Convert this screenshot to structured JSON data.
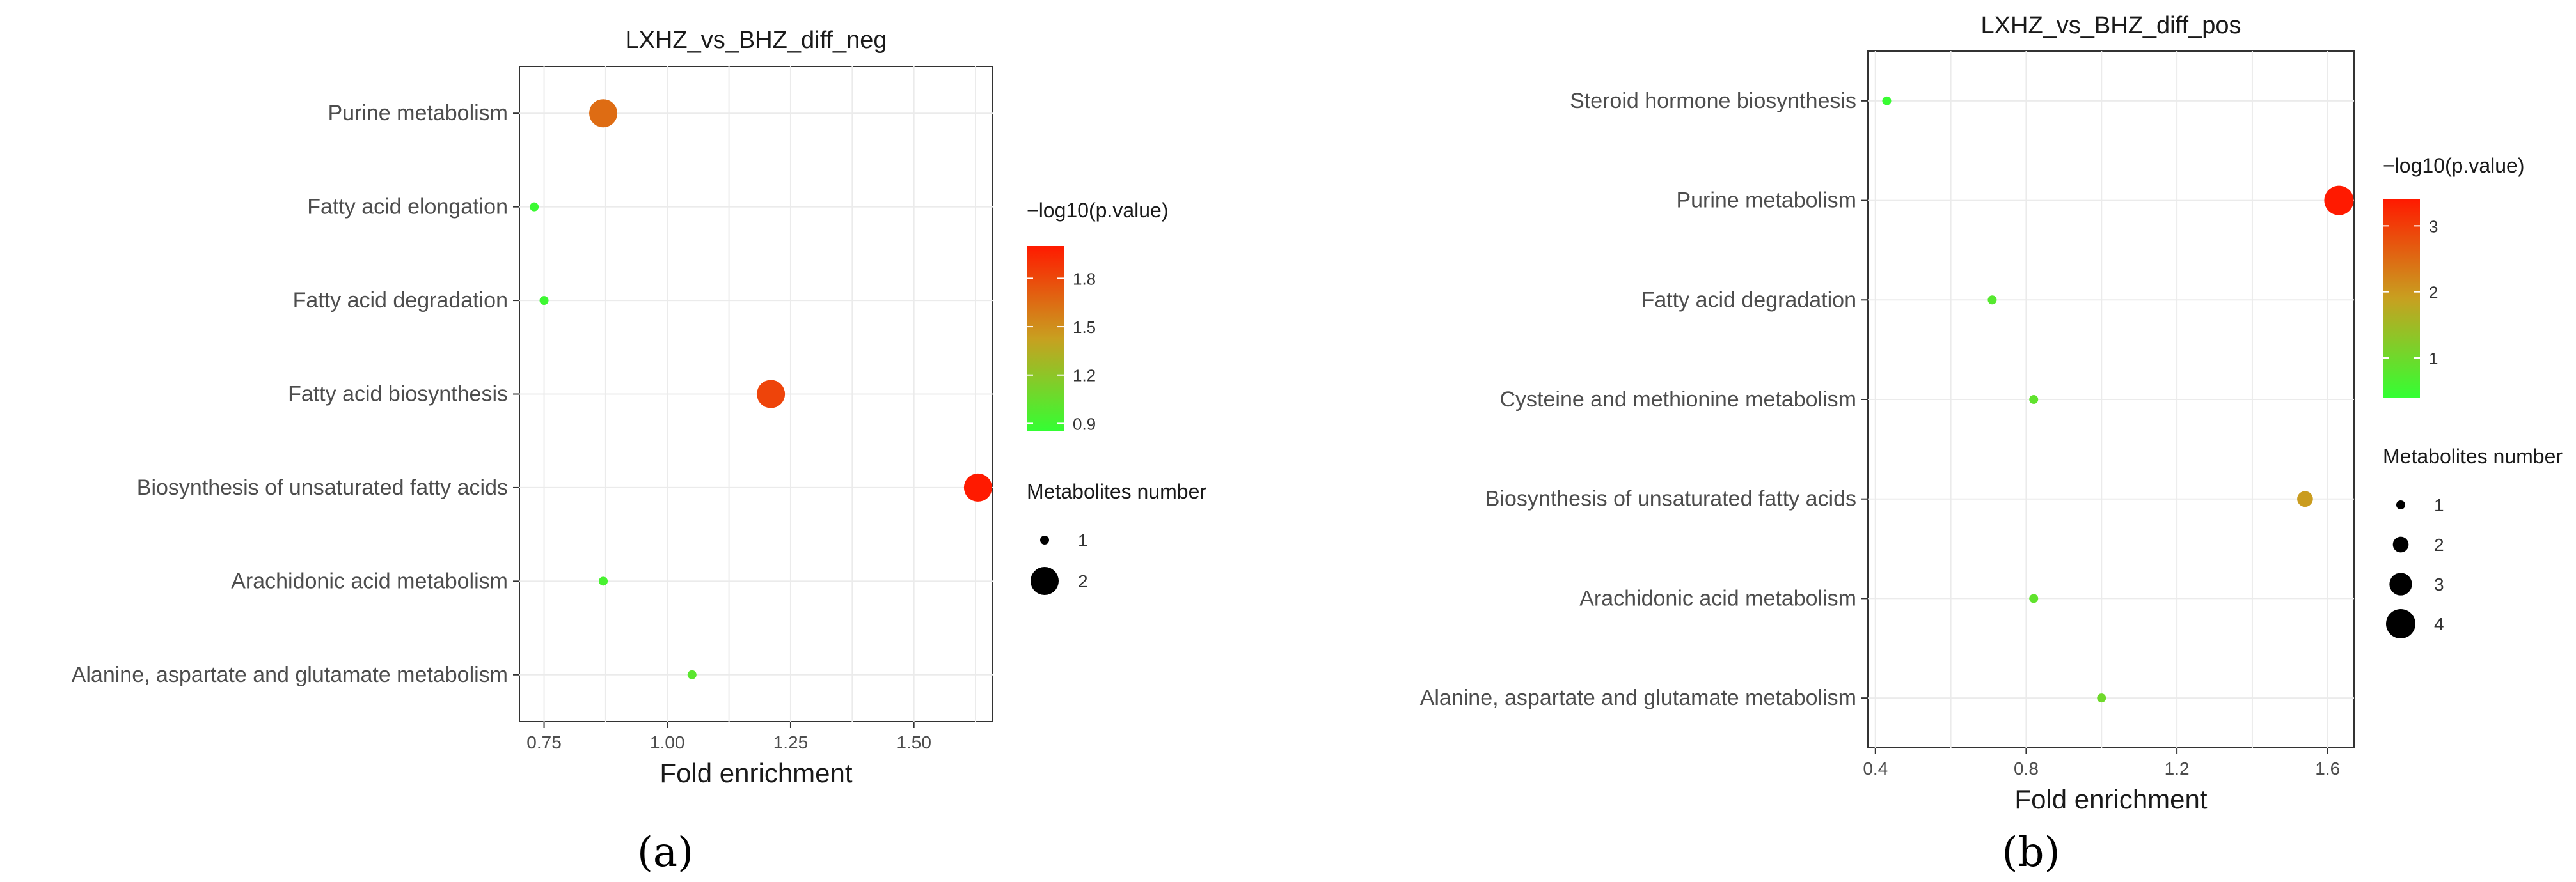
{
  "panels": [
    {
      "caption": "(a)",
      "legend_color_title": "−log10(p.value)",
      "legend_size_title": "Metabolites number"
    },
    {
      "caption": "(b)",
      "legend_color_title": "−log10(p.value)",
      "legend_size_title": "Metabolites number"
    }
  ],
  "chart_data": [
    {
      "type": "scatter",
      "title": "LXHZ_vs_BHZ_diff_neg",
      "xlabel": "Fold enrichment",
      "ylabel": "",
      "xlim": [
        0.7,
        1.66
      ],
      "xticks": [
        0.75,
        1.0,
        1.25,
        1.5
      ],
      "xtick_labels": [
        "0.75",
        "1.00",
        "1.25",
        "1.50"
      ],
      "categories": [
        "Purine metabolism",
        "Fatty acid elongation",
        "Fatty acid degradation",
        "Fatty acid biosynthesis",
        "Biosynthesis of unsaturated fatty acids",
        "Arachidonic acid metabolism",
        "Alanine, aspartate and glutamate metabolism"
      ],
      "points": [
        {
          "category": "Purine metabolism",
          "fold_enrichment": 0.87,
          "neg_log10_p": 1.65,
          "metabolites": 2
        },
        {
          "category": "Fatty acid elongation",
          "fold_enrichment": 0.73,
          "neg_log10_p": 0.88,
          "metabolites": 1
        },
        {
          "category": "Fatty acid degradation",
          "fold_enrichment": 0.75,
          "neg_log10_p": 0.89,
          "metabolites": 1
        },
        {
          "category": "Fatty acid biosynthesis",
          "fold_enrichment": 1.21,
          "neg_log10_p": 1.82,
          "metabolites": 2
        },
        {
          "category": "Biosynthesis of unsaturated fatty acids",
          "fold_enrichment": 1.63,
          "neg_log10_p": 2.0,
          "metabolites": 2
        },
        {
          "category": "Arachidonic acid metabolism",
          "fold_enrichment": 0.87,
          "neg_log10_p": 0.93,
          "metabolites": 1
        },
        {
          "category": "Alanine, aspartate and glutamate metabolism",
          "fold_enrichment": 1.05,
          "neg_log10_p": 1.0,
          "metabolites": 1
        }
      ],
      "color_scale": {
        "min": 0.85,
        "max": 2.0,
        "ticks": [
          0.9,
          1.2,
          1.5,
          1.8
        ],
        "tick_labels": [
          "0.9",
          "1.2",
          "1.5",
          "1.8"
        ],
        "low_color": "#33ff33",
        "mid_color": "#c8a020",
        "high_color": "#ff1a00"
      },
      "size_scale": {
        "values": [
          1,
          2
        ],
        "labels": [
          "1",
          "2"
        ],
        "max": 2
      },
      "grid": true,
      "legend_placement": "right"
    },
    {
      "type": "scatter",
      "title": "LXHZ_vs_BHZ_diff_pos",
      "xlabel": "Fold enrichment",
      "ylabel": "",
      "xlim": [
        0.38,
        1.67
      ],
      "xticks": [
        0.4,
        0.8,
        1.2,
        1.6
      ],
      "xtick_labels": [
        "0.4",
        "0.8",
        "1.2",
        "1.6"
      ],
      "categories": [
        "Steroid hormone biosynthesis",
        "Purine metabolism",
        "Fatty acid degradation",
        "Cysteine and methionine metabolism",
        "Biosynthesis of unsaturated fatty acids",
        "Arachidonic acid metabolism",
        "Alanine, aspartate and glutamate metabolism"
      ],
      "points": [
        {
          "category": "Steroid hormone biosynthesis",
          "fold_enrichment": 0.43,
          "neg_log10_p": 0.45,
          "metabolites": 1
        },
        {
          "category": "Purine metabolism",
          "fold_enrichment": 1.63,
          "neg_log10_p": 3.4,
          "metabolites": 4
        },
        {
          "category": "Fatty acid degradation",
          "fold_enrichment": 0.71,
          "neg_log10_p": 0.75,
          "metabolites": 1
        },
        {
          "category": "Cysteine and methionine metabolism",
          "fold_enrichment": 0.82,
          "neg_log10_p": 0.85,
          "metabolites": 1
        },
        {
          "category": "Biosynthesis of unsaturated fatty acids",
          "fold_enrichment": 1.54,
          "neg_log10_p": 1.95,
          "metabolites": 2
        },
        {
          "category": "Arachidonic acid metabolism",
          "fold_enrichment": 0.82,
          "neg_log10_p": 0.85,
          "metabolites": 1
        },
        {
          "category": "Alanine, aspartate and glutamate metabolism",
          "fold_enrichment": 1.0,
          "neg_log10_p": 1.0,
          "metabolites": 1
        }
      ],
      "color_scale": {
        "min": 0.4,
        "max": 3.4,
        "ticks": [
          1,
          2,
          3
        ],
        "tick_labels": [
          "1",
          "2",
          "3"
        ],
        "low_color": "#33ff33",
        "mid_color": "#c8a020",
        "high_color": "#ff1a00"
      },
      "size_scale": {
        "values": [
          1,
          2,
          3,
          4
        ],
        "labels": [
          "1",
          "2",
          "3",
          "4"
        ],
        "max": 4
      },
      "grid": true,
      "legend_placement": "right"
    }
  ]
}
